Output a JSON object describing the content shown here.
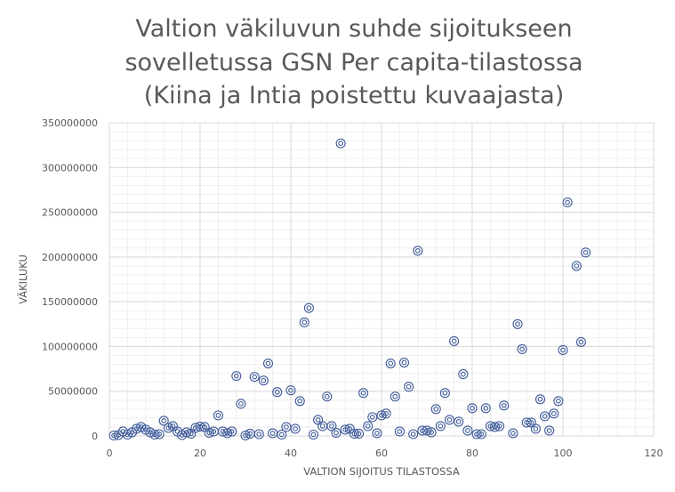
{
  "chart_data": {
    "type": "scatter",
    "title_lines": [
      "Valtion väkiluvun suhde sijoitukseen",
      "sovelletussa GSN Per capita-tilastossa",
      "(Kiina ja Intia poistettu kuvaajasta)"
    ],
    "xlabel": "VALTION SIJOITUS TILASTOSSA",
    "ylabel": "VÄKILUKU",
    "xlim": [
      0,
      120
    ],
    "ylim": [
      0,
      350000000
    ],
    "x_ticks": [
      0,
      20,
      40,
      60,
      80,
      100,
      120
    ],
    "x_tick_labels": [
      "0",
      "20",
      "40",
      "60",
      "80",
      "100",
      "120"
    ],
    "y_ticks": [
      0,
      50000000,
      100000000,
      150000000,
      200000000,
      250000000,
      300000000,
      350000000
    ],
    "y_tick_labels": [
      "0",
      "50000000",
      "100000000",
      "150000000",
      "200000000",
      "250000000",
      "300000000",
      "350000000"
    ],
    "grid": true,
    "marker": "double-circle",
    "color": "#3f5b9a",
    "points": [
      [
        1,
        500000
      ],
      [
        2,
        1000000
      ],
      [
        3,
        5000000
      ],
      [
        4,
        1500000
      ],
      [
        5,
        4000000
      ],
      [
        6,
        8000000
      ],
      [
        7,
        10000000
      ],
      [
        8,
        7000000
      ],
      [
        9,
        4000000
      ],
      [
        10,
        1500000
      ],
      [
        11,
        2000000
      ],
      [
        12,
        17000000
      ],
      [
        13,
        9000000
      ],
      [
        14,
        11000000
      ],
      [
        15,
        5000000
      ],
      [
        16,
        1000000
      ],
      [
        17,
        4000000
      ],
      [
        18,
        2500000
      ],
      [
        19,
        9000000
      ],
      [
        20,
        10500000
      ],
      [
        21,
        10000000
      ],
      [
        22,
        3500000
      ],
      [
        23,
        5000000
      ],
      [
        24,
        23000000
      ],
      [
        25,
        5000000
      ],
      [
        26,
        3000000
      ],
      [
        27,
        5000000
      ],
      [
        28,
        67000000
      ],
      [
        29,
        36000000
      ],
      [
        30,
        500000
      ],
      [
        31,
        2500000
      ],
      [
        32,
        66000000
      ],
      [
        33,
        2000000
      ],
      [
        34,
        62000000
      ],
      [
        35,
        81000000
      ],
      [
        36,
        3000000
      ],
      [
        37,
        49000000
      ],
      [
        38,
        1500000
      ],
      [
        39,
        10000000
      ],
      [
        40,
        51000000
      ],
      [
        41,
        8000000
      ],
      [
        42,
        39000000
      ],
      [
        43,
        127000000
      ],
      [
        44,
        143000000
      ],
      [
        45,
        1500000
      ],
      [
        46,
        18000000
      ],
      [
        47,
        11000000
      ],
      [
        48,
        44000000
      ],
      [
        49,
        11000000
      ],
      [
        50,
        3500000
      ],
      [
        51,
        327000000
      ],
      [
        52,
        7000000
      ],
      [
        53,
        8000000
      ],
      [
        54,
        2500000
      ],
      [
        55,
        2500000
      ],
      [
        56,
        48000000
      ],
      [
        57,
        11000000
      ],
      [
        58,
        21000000
      ],
      [
        59,
        3000000
      ],
      [
        60,
        23000000
      ],
      [
        61,
        25000000
      ],
      [
        62,
        81000000
      ],
      [
        63,
        44000000
      ],
      [
        64,
        5000000
      ],
      [
        65,
        82000000
      ],
      [
        66,
        55000000
      ],
      [
        67,
        2000000
      ],
      [
        68,
        207000000
      ],
      [
        69,
        6000000
      ],
      [
        70,
        6000000
      ],
      [
        71,
        4000000
      ],
      [
        72,
        30000000
      ],
      [
        73,
        11000000
      ],
      [
        74,
        48000000
      ],
      [
        75,
        18000000
      ],
      [
        76,
        106000000
      ],
      [
        77,
        16000000
      ],
      [
        78,
        69000000
      ],
      [
        79,
        6000000
      ],
      [
        80,
        31000000
      ],
      [
        81,
        2000000
      ],
      [
        82,
        2000000
      ],
      [
        83,
        31000000
      ],
      [
        84,
        11000000
      ],
      [
        85,
        10000000
      ],
      [
        86,
        11000000
      ],
      [
        87,
        34000000
      ],
      [
        89,
        3000000
      ],
      [
        90,
        125000000
      ],
      [
        91,
        97000000
      ],
      [
        92,
        15000000
      ],
      [
        93,
        15000000
      ],
      [
        94,
        8000000
      ],
      [
        95,
        41000000
      ],
      [
        96,
        22000000
      ],
      [
        97,
        6000000
      ],
      [
        98,
        25000000
      ],
      [
        99,
        39000000
      ],
      [
        100,
        96000000
      ],
      [
        101,
        261000000
      ],
      [
        103,
        190000000
      ],
      [
        104,
        105000000
      ],
      [
        105,
        205000000
      ]
    ]
  }
}
